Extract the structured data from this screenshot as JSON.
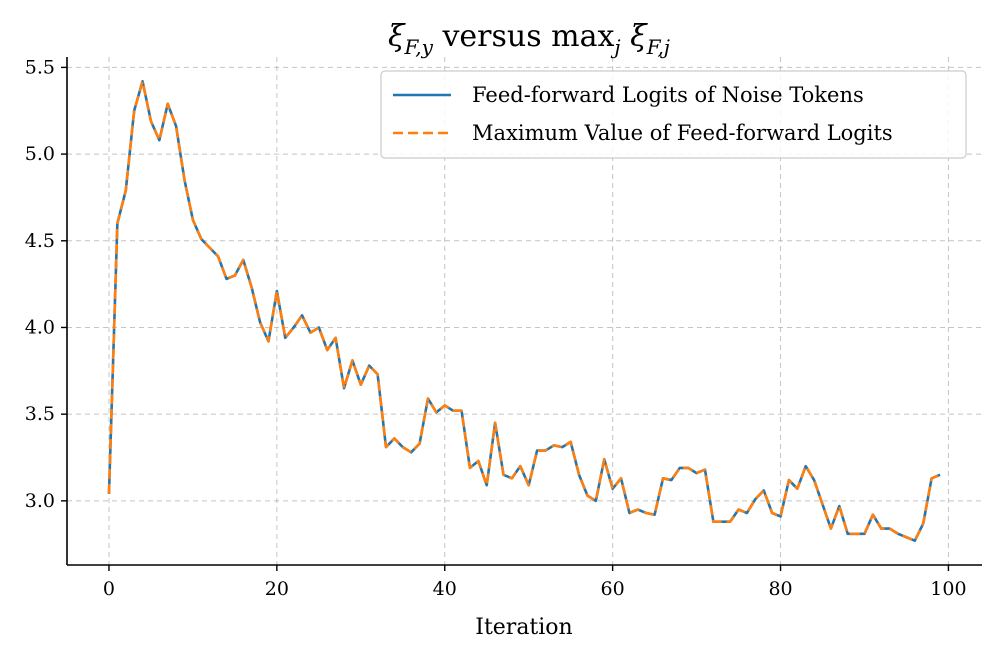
{
  "chart_data": {
    "type": "line",
    "title": "ξ_{F,y} versus max_j ξ_{F,j}",
    "title_parts": {
      "xi1": "ξ",
      "sub1": "F,y",
      "mid": " versus max",
      "subj": "j",
      "xi2": " ξ",
      "sub2": "F,j"
    },
    "xlabel": "Iteration",
    "ylabel": "",
    "xlim": [
      -5,
      104
    ],
    "ylim": [
      2.63,
      5.56
    ],
    "xticks": [
      0,
      20,
      40,
      60,
      80,
      100
    ],
    "xtick_labels": [
      "0",
      "20",
      "40",
      "60",
      "80",
      "100"
    ],
    "yticks": [
      3.0,
      3.5,
      4.0,
      4.5,
      5.0,
      5.5
    ],
    "ytick_labels": [
      "3.0",
      "3.5",
      "4.0",
      "4.5",
      "5.0",
      "5.5"
    ],
    "grid": true,
    "legend_position": "top-right",
    "x": [
      0,
      1,
      2,
      3,
      4,
      5,
      6,
      7,
      8,
      9,
      10,
      11,
      12,
      13,
      14,
      15,
      16,
      17,
      18,
      19,
      20,
      21,
      22,
      23,
      24,
      25,
      26,
      27,
      28,
      29,
      30,
      31,
      32,
      33,
      34,
      35,
      36,
      37,
      38,
      39,
      40,
      41,
      42,
      43,
      44,
      45,
      46,
      47,
      48,
      49,
      50,
      51,
      52,
      53,
      54,
      55,
      56,
      57,
      58,
      59,
      60,
      61,
      62,
      63,
      64,
      65,
      66,
      67,
      68,
      69,
      70,
      71,
      72,
      73,
      74,
      75,
      76,
      77,
      78,
      79,
      80,
      81,
      82,
      83,
      84,
      85,
      86,
      87,
      88,
      89,
      90,
      91,
      92,
      93,
      94,
      95,
      96,
      97,
      98,
      99
    ],
    "series": [
      {
        "name": "Feed-forward Logits of Noise Tokens",
        "color": "#1f77b4",
        "style": "solid",
        "values": [
          3.04,
          4.6,
          4.79,
          5.25,
          5.42,
          5.19,
          5.08,
          5.29,
          5.16,
          4.85,
          4.62,
          4.51,
          4.46,
          4.41,
          4.28,
          4.3,
          4.39,
          4.23,
          4.03,
          3.92,
          4.21,
          3.94,
          4.0,
          4.07,
          3.97,
          4.0,
          3.87,
          3.94,
          3.65,
          3.81,
          3.67,
          3.78,
          3.73,
          3.31,
          3.36,
          3.31,
          3.28,
          3.33,
          3.59,
          3.51,
          3.55,
          3.52,
          3.52,
          3.19,
          3.23,
          3.09,
          3.45,
          3.15,
          3.13,
          3.2,
          3.09,
          3.29,
          3.29,
          3.32,
          3.31,
          3.34,
          3.15,
          3.03,
          3.0,
          3.24,
          3.07,
          3.13,
          2.93,
          2.95,
          2.93,
          2.92,
          3.13,
          3.12,
          3.19,
          3.19,
          3.16,
          3.18,
          2.88,
          2.88,
          2.88,
          2.95,
          2.93,
          3.01,
          3.06,
          2.93,
          2.91,
          3.12,
          3.07,
          3.2,
          3.12,
          2.98,
          2.84,
          2.97,
          2.81,
          2.81,
          2.81,
          2.92,
          2.84,
          2.84,
          2.81,
          2.79,
          2.77,
          2.87,
          3.13,
          3.15
        ]
      },
      {
        "name": "Maximum Value of Feed-forward Logits",
        "color": "#ff7f0e",
        "style": "dashed",
        "values": [
          3.04,
          4.6,
          4.79,
          5.25,
          5.42,
          5.19,
          5.08,
          5.29,
          5.16,
          4.85,
          4.62,
          4.51,
          4.46,
          4.41,
          4.28,
          4.3,
          4.39,
          4.23,
          4.03,
          3.92,
          4.21,
          3.94,
          4.0,
          4.07,
          3.97,
          4.0,
          3.87,
          3.94,
          3.65,
          3.81,
          3.67,
          3.78,
          3.73,
          3.31,
          3.36,
          3.31,
          3.28,
          3.33,
          3.59,
          3.51,
          3.55,
          3.52,
          3.52,
          3.19,
          3.23,
          3.09,
          3.45,
          3.15,
          3.13,
          3.2,
          3.09,
          3.29,
          3.29,
          3.32,
          3.31,
          3.34,
          3.15,
          3.03,
          3.0,
          3.24,
          3.07,
          3.13,
          2.93,
          2.95,
          2.93,
          2.92,
          3.13,
          3.12,
          3.19,
          3.19,
          3.16,
          3.18,
          2.88,
          2.88,
          2.88,
          2.95,
          2.93,
          3.01,
          3.06,
          2.93,
          2.91,
          3.12,
          3.07,
          3.2,
          3.12,
          2.98,
          2.84,
          2.97,
          2.81,
          2.81,
          2.81,
          2.92,
          2.84,
          2.84,
          2.81,
          2.79,
          2.77,
          2.87,
          3.13,
          3.15
        ]
      }
    ]
  }
}
